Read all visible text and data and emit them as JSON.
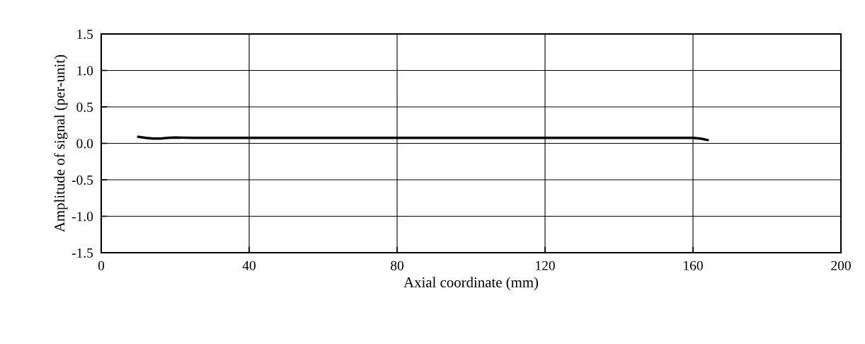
{
  "chart_data": {
    "type": "line",
    "xlabel": "Axial coordinate (mm)",
    "ylabel": "Amplitude of signal (per-unit)",
    "series": [
      {
        "color": "#000000",
        "x": [
          10,
          12,
          14,
          16,
          18,
          20,
          25,
          30,
          40,
          50,
          60,
          70,
          80,
          90,
          100,
          110,
          120,
          130,
          140,
          150,
          155,
          160,
          162,
          164
        ],
        "values": [
          0.09,
          0.075,
          0.065,
          0.065,
          0.075,
          0.08,
          0.075,
          0.075,
          0.075,
          0.075,
          0.075,
          0.075,
          0.075,
          0.075,
          0.075,
          0.075,
          0.075,
          0.075,
          0.075,
          0.075,
          0.075,
          0.075,
          0.065,
          0.045
        ]
      }
    ],
    "xlim": [
      0,
      200
    ],
    "xticks": [
      0,
      40,
      80,
      120,
      160,
      200
    ],
    "ylim": [
      -1.5,
      1.5
    ],
    "yticks": [
      {
        "value": -1.5,
        "label": "-1.5"
      },
      {
        "value": -1.0,
        "label": "-1.0"
      },
      {
        "value": -0.5,
        "label": "-0.5"
      },
      {
        "value": 0,
        "label": "0.0"
      },
      {
        "value": 0.5,
        "label": "0.5"
      },
      {
        "value": 1.0,
        "label": "1.0"
      },
      {
        "value": 1.5,
        "label": "1.5"
      }
    ],
    "grid": true
  }
}
